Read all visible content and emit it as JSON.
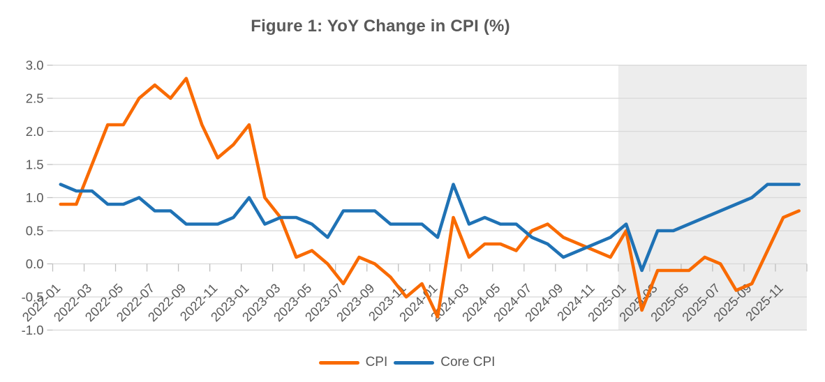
{
  "chart_data": {
    "type": "line",
    "title": "Figure 1: YoY Change in CPI (%)",
    "xlabel": "",
    "ylabel": "",
    "ylim": [
      -1.0,
      3.0
    ],
    "y_tick_step": 0.5,
    "y_tick_labels": [
      "3.0",
      "2.5",
      "2.0",
      "1.5",
      "1.0",
      "0.5",
      "0.0",
      "-0.5",
      "-1.0"
    ],
    "x_tick_labels": [
      "2022-01",
      "2022-03",
      "2022-05",
      "2022-07",
      "2022-09",
      "2022-11",
      "2023-01",
      "2023-03",
      "2023-05",
      "2023-07",
      "2023-09",
      "2023-11",
      "2024-01",
      "2024-03",
      "2024-05",
      "2024-07",
      "2024-09",
      "2024-11",
      "2025-01",
      "2025-03",
      "2025-05",
      "2025-07",
      "2025-09",
      "2025-11"
    ],
    "categories": [
      "2022-01",
      "2022-02",
      "2022-03",
      "2022-04",
      "2022-05",
      "2022-06",
      "2022-07",
      "2022-08",
      "2022-09",
      "2022-10",
      "2022-11",
      "2022-12",
      "2023-01",
      "2023-02",
      "2023-03",
      "2023-04",
      "2023-05",
      "2023-06",
      "2023-07",
      "2023-08",
      "2023-09",
      "2023-10",
      "2023-11",
      "2023-12",
      "2024-01",
      "2024-02",
      "2024-03",
      "2024-04",
      "2024-05",
      "2024-06",
      "2024-07",
      "2024-08",
      "2024-09",
      "2024-10",
      "2024-11",
      "2024-12",
      "2025-01",
      "2025-02",
      "2025-03",
      "2025-04",
      "2025-05",
      "2025-06",
      "2025-07",
      "2025-08",
      "2025-09",
      "2025-10",
      "2025-11",
      "2025-12"
    ],
    "series": [
      {
        "name": "CPI",
        "color": "#F96A00",
        "values": [
          0.9,
          0.9,
          1.5,
          2.1,
          2.1,
          2.5,
          2.7,
          2.5,
          2.8,
          2.1,
          1.6,
          1.8,
          2.1,
          1.0,
          0.7,
          0.1,
          0.2,
          0.0,
          -0.3,
          0.1,
          0.0,
          -0.2,
          -0.5,
          -0.3,
          -0.8,
          0.7,
          0.1,
          0.3,
          0.3,
          0.2,
          0.5,
          0.6,
          0.4,
          0.3,
          0.2,
          0.1,
          0.5,
          -0.7,
          -0.1,
          -0.1,
          -0.1,
          0.1,
          0.0,
          -0.4,
          -0.3,
          0.2,
          0.7,
          0.8
        ]
      },
      {
        "name": "Core CPI",
        "color": "#1F72B5",
        "values": [
          1.2,
          1.1,
          1.1,
          0.9,
          0.9,
          1.0,
          0.8,
          0.8,
          0.6,
          0.6,
          0.6,
          0.7,
          1.0,
          0.6,
          0.7,
          0.7,
          0.6,
          0.4,
          0.8,
          0.8,
          0.8,
          0.6,
          0.6,
          0.6,
          0.4,
          1.2,
          0.6,
          0.7,
          0.6,
          0.6,
          0.4,
          0.3,
          0.1,
          0.2,
          0.3,
          0.4,
          0.6,
          -0.1,
          0.5,
          0.5,
          0.6,
          0.7,
          0.8,
          0.9,
          1.0,
          1.2,
          1.2,
          1.2
        ]
      }
    ],
    "forecast_shade": {
      "start": "2025-01",
      "end": "2025-12",
      "color": "#EDEDED"
    },
    "grid": "horizontal",
    "gridline_color": "#D8D8D8",
    "axis_tick_color": "#BFBFBF",
    "axis_text_color": "#595959",
    "legend_position": "bottom-center"
  }
}
